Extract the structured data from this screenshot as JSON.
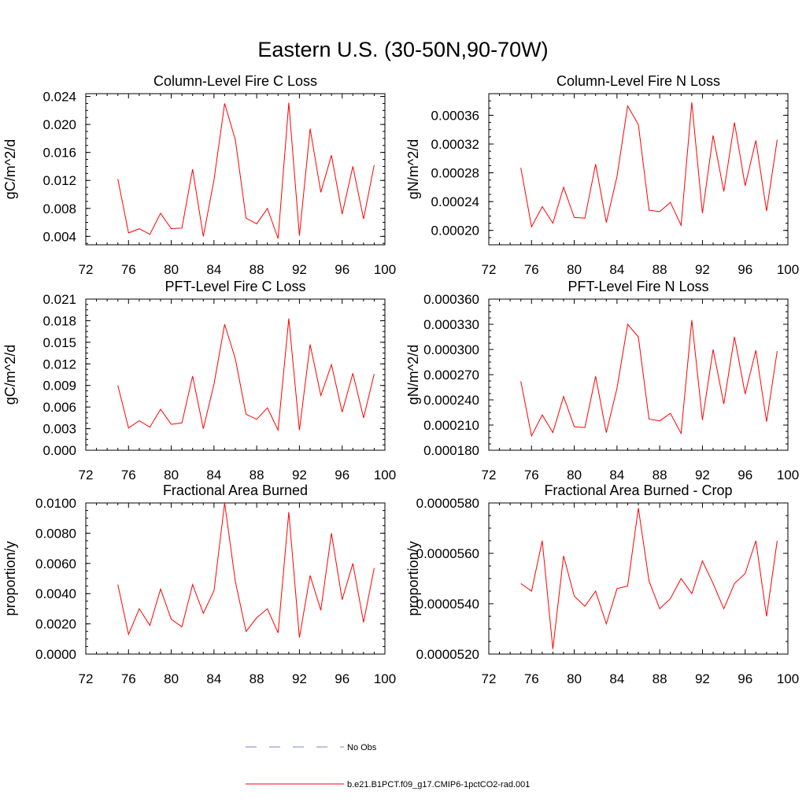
{
  "title": "Eastern U.S. (30-50N,90-70W)",
  "colors": {
    "series": "#ff0000",
    "obs": "#7a86c8",
    "axis": "#000000"
  },
  "legend": {
    "items": [
      {
        "label": "No Obs",
        "style": "dashed",
        "color": "#7a86c8"
      },
      {
        "label": "b.e21.B1PCT.f09_g17.CMIP6-1pctCO2-rad.001",
        "style": "solid",
        "color": "#ff0000"
      }
    ]
  },
  "chart_data": [
    {
      "type": "line",
      "title": "Column-Level Fire C Loss",
      "ylabel": "gC/m^2/d",
      "xlim": [
        72,
        100
      ],
      "xticks": [
        "72",
        "76",
        "80",
        "84",
        "88",
        "92",
        "96",
        "100"
      ],
      "ylim": [
        0.0028,
        0.0244
      ],
      "yticks": [
        "0.004",
        "0.008",
        "0.012",
        "0.016",
        "0.020",
        "0.024"
      ],
      "x": [
        75,
        76,
        77,
        78,
        79,
        80,
        81,
        82,
        83,
        84,
        85,
        86,
        87,
        88,
        89,
        90,
        91,
        92,
        93,
        94,
        95,
        96,
        97,
        98,
        99
      ],
      "series": [
        {
          "values": [
            0.0122,
            0.0045,
            0.0051,
            0.0043,
            0.0073,
            0.0051,
            0.0052,
            0.0136,
            0.004,
            0.0121,
            0.023,
            0.0178,
            0.0066,
            0.0058,
            0.008,
            0.0037,
            0.0231,
            0.0041,
            0.0194,
            0.0103,
            0.0156,
            0.0072,
            0.014,
            0.0065,
            0.0142
          ]
        }
      ]
    },
    {
      "type": "line",
      "title": "Column-Level Fire N Loss",
      "ylabel": "gN/m^2/d",
      "xlim": [
        72,
        100
      ],
      "xticks": [
        "72",
        "76",
        "80",
        "84",
        "88",
        "92",
        "96",
        "100"
      ],
      "ylim": [
        0.00018,
        0.00039
      ],
      "yticks": [
        "0.00020",
        "0.00024",
        "0.00028",
        "0.00032",
        "0.00036"
      ],
      "x": [
        75,
        76,
        77,
        78,
        79,
        80,
        81,
        82,
        83,
        84,
        85,
        86,
        87,
        88,
        89,
        90,
        91,
        92,
        93,
        94,
        95,
        96,
        97,
        98,
        99
      ],
      "series": [
        {
          "values": [
            0.000287,
            0.000205,
            0.000233,
            0.00021,
            0.00026,
            0.000218,
            0.000217,
            0.000292,
            0.000211,
            0.000275,
            0.000373,
            0.000347,
            0.000228,
            0.000226,
            0.000239,
            0.000207,
            0.000378,
            0.000224,
            0.000332,
            0.000254,
            0.00035,
            0.000262,
            0.000325,
            0.000227,
            0.000326
          ]
        }
      ]
    },
    {
      "type": "line",
      "title": "PFT-Level Fire C Loss",
      "ylabel": "gC/m^2/d",
      "xlim": [
        72,
        100
      ],
      "xticks": [
        "72",
        "76",
        "80",
        "84",
        "88",
        "92",
        "96",
        "100"
      ],
      "ylim": [
        0.0,
        0.021
      ],
      "yticks": [
        "0.000",
        "0.003",
        "0.006",
        "0.009",
        "0.012",
        "0.015",
        "0.018",
        "0.021"
      ],
      "x": [
        75,
        76,
        77,
        78,
        79,
        80,
        81,
        82,
        83,
        84,
        85,
        86,
        87,
        88,
        89,
        90,
        91,
        92,
        93,
        94,
        95,
        96,
        97,
        98,
        99
      ],
      "series": [
        {
          "values": [
            0.009,
            0.0031,
            0.0041,
            0.0032,
            0.0057,
            0.0036,
            0.0038,
            0.0103,
            0.003,
            0.0092,
            0.0175,
            0.0127,
            0.005,
            0.0043,
            0.0059,
            0.0028,
            0.0183,
            0.0028,
            0.0147,
            0.0076,
            0.0119,
            0.0053,
            0.0107,
            0.0045,
            0.0106
          ]
        }
      ]
    },
    {
      "type": "line",
      "title": "PFT-Level Fire N Loss",
      "ylabel": "gN/m^2/d",
      "xlim": [
        72,
        100
      ],
      "xticks": [
        "72",
        "76",
        "80",
        "84",
        "88",
        "92",
        "96",
        "100"
      ],
      "ylim": [
        0.00018,
        0.00036
      ],
      "yticks": [
        "0.000180",
        "0.000210",
        "0.000240",
        "0.000270",
        "0.000300",
        "0.000330",
        "0.000360"
      ],
      "x": [
        75,
        76,
        77,
        78,
        79,
        80,
        81,
        82,
        83,
        84,
        85,
        86,
        87,
        88,
        89,
        90,
        91,
        92,
        93,
        94,
        95,
        96,
        97,
        98,
        99
      ],
      "series": [
        {
          "values": [
            0.000262,
            0.000197,
            0.000222,
            0.000201,
            0.000244,
            0.000208,
            0.000207,
            0.000268,
            0.000201,
            0.000254,
            0.00033,
            0.000315,
            0.000217,
            0.000215,
            0.000224,
            0.0002,
            0.000335,
            0.000216,
            0.0003,
            0.000235,
            0.000315,
            0.000247,
            0.000299,
            0.000214,
            0.000298
          ]
        }
      ]
    },
    {
      "type": "line",
      "title": "Fractional Area Burned",
      "ylabel": "proportion/y",
      "xlim": [
        72,
        100
      ],
      "xticks": [
        "72",
        "76",
        "80",
        "84",
        "88",
        "92",
        "96",
        "100"
      ],
      "ylim": [
        0.0,
        0.01
      ],
      "yticks": [
        "0.0000",
        "0.0020",
        "0.0040",
        "0.0060",
        "0.0080",
        "0.0100"
      ],
      "x": [
        75,
        76,
        77,
        78,
        79,
        80,
        81,
        82,
        83,
        84,
        85,
        86,
        87,
        88,
        89,
        90,
        91,
        92,
        93,
        94,
        95,
        96,
        97,
        98,
        99
      ],
      "series": [
        {
          "values": [
            0.0046,
            0.0013,
            0.003,
            0.0019,
            0.0043,
            0.0023,
            0.0018,
            0.0046,
            0.0027,
            0.0042,
            0.01,
            0.0048,
            0.0015,
            0.0024,
            0.003,
            0.0014,
            0.0094,
            0.0011,
            0.0052,
            0.0029,
            0.008,
            0.0036,
            0.006,
            0.0021,
            0.0057
          ]
        }
      ]
    },
    {
      "type": "line",
      "title": "Fractional Area Burned - Crop",
      "ylabel": "proportion/y",
      "xlim": [
        72,
        100
      ],
      "xticks": [
        "72",
        "76",
        "80",
        "84",
        "88",
        "92",
        "96",
        "100"
      ],
      "ylim": [
        5.2e-05,
        5.8e-05
      ],
      "yticks": [
        "0.0000520",
        "0.0000540",
        "0.0000560",
        "0.0000580"
      ],
      "x": [
        75,
        76,
        77,
        78,
        79,
        80,
        81,
        82,
        83,
        84,
        85,
        86,
        87,
        88,
        89,
        90,
        91,
        92,
        93,
        94,
        95,
        96,
        97,
        98,
        99
      ],
      "series": [
        {
          "values": [
            5.48e-05,
            5.45e-05,
            5.65e-05,
            5.22e-05,
            5.59e-05,
            5.43e-05,
            5.39e-05,
            5.45e-05,
            5.32e-05,
            5.46e-05,
            5.47e-05,
            5.78e-05,
            5.49e-05,
            5.38e-05,
            5.42e-05,
            5.5e-05,
            5.44e-05,
            5.57e-05,
            5.48e-05,
            5.38e-05,
            5.48e-05,
            5.52e-05,
            5.65e-05,
            5.35e-05,
            5.65e-05
          ]
        }
      ]
    }
  ]
}
